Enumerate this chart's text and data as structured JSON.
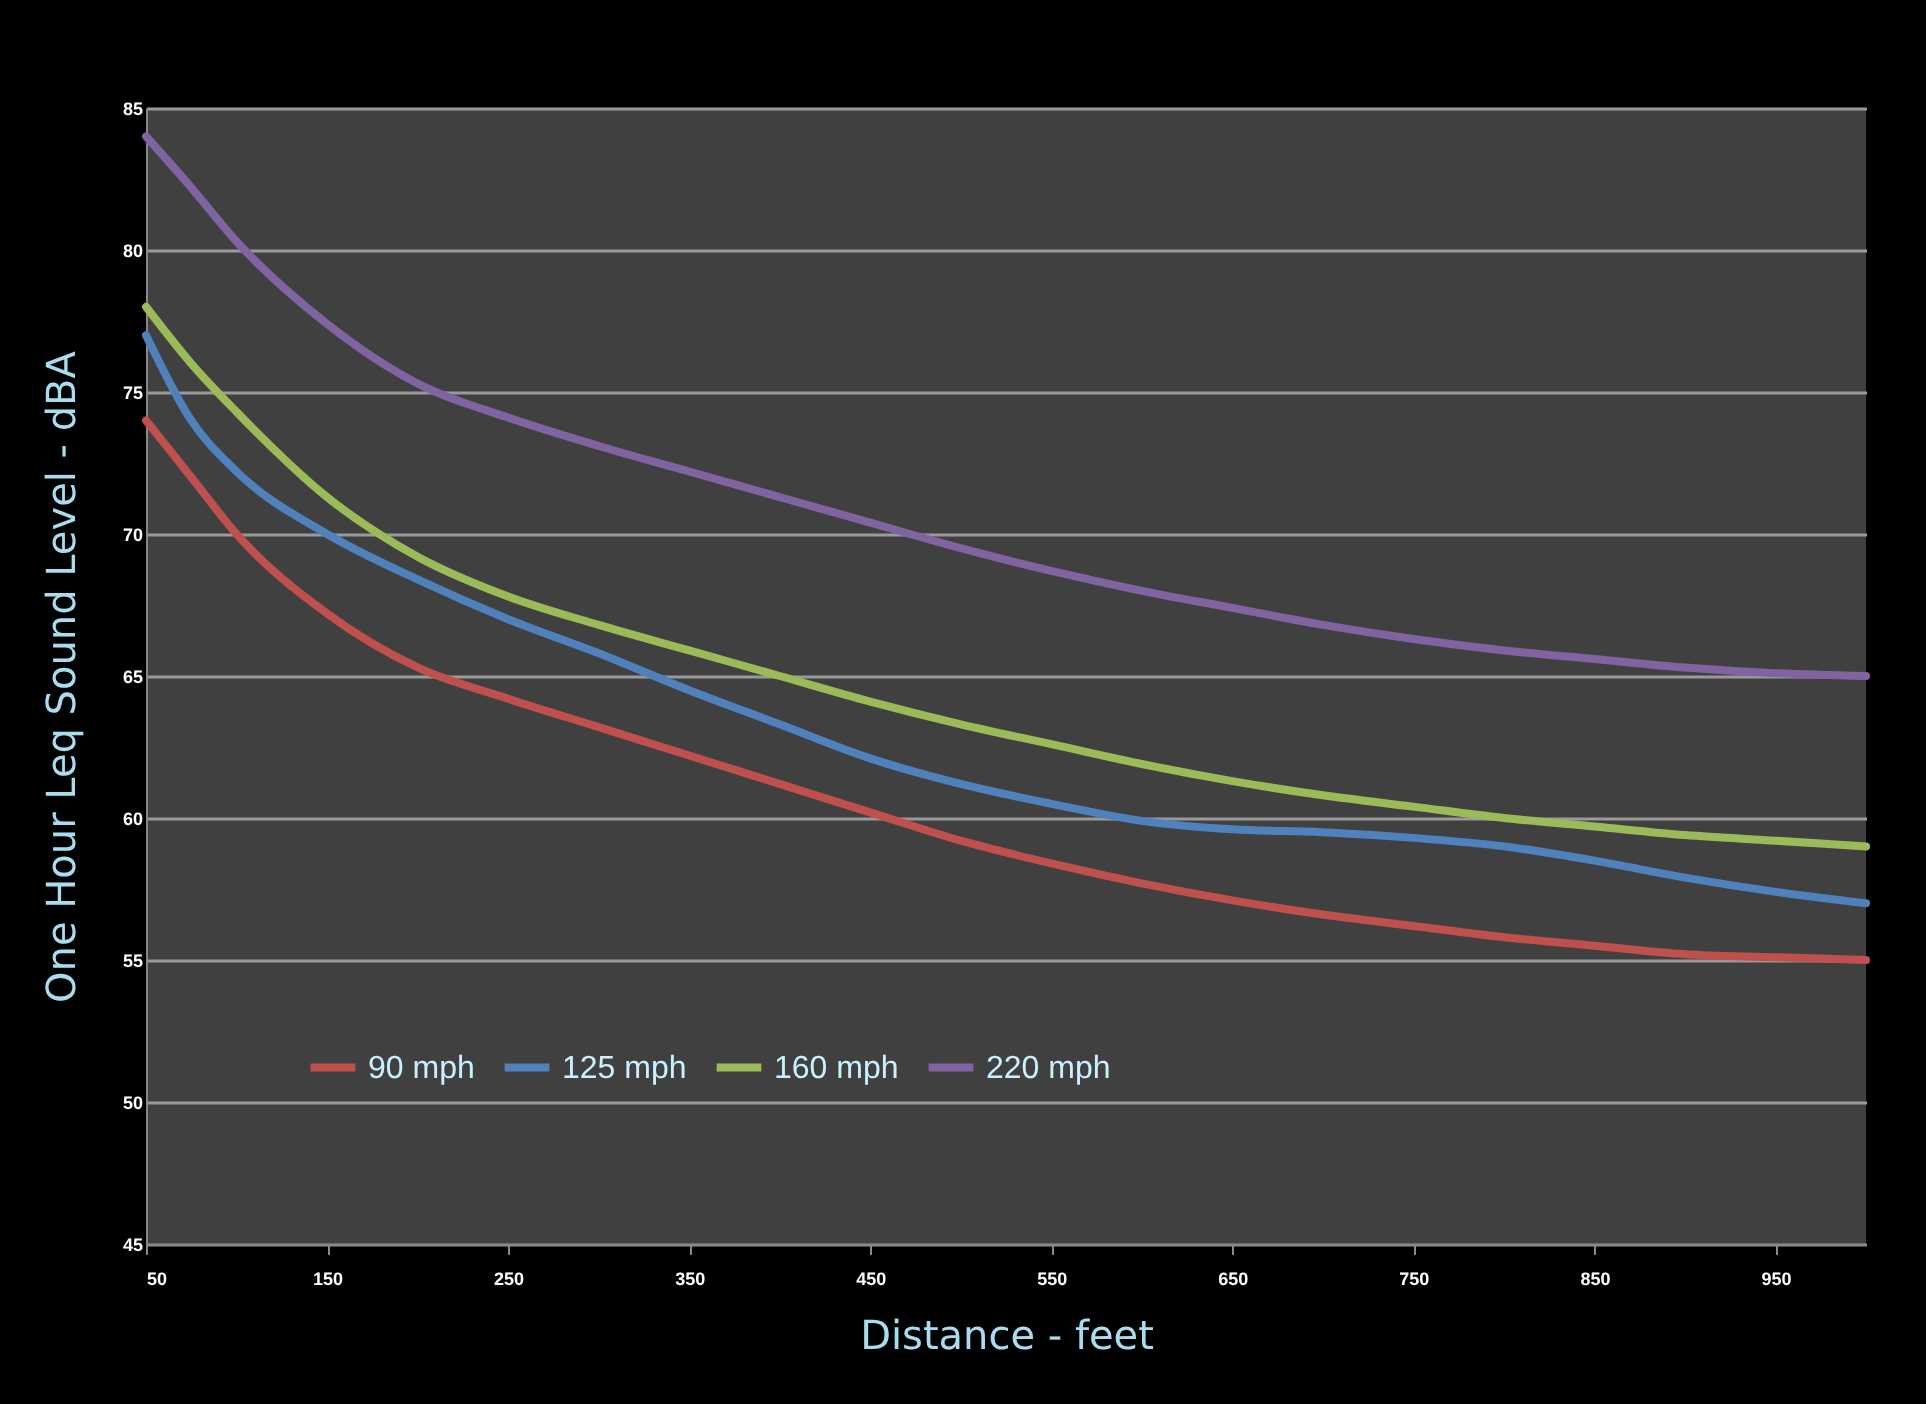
{
  "chart_data": {
    "type": "line",
    "xlabel": "Distance - feet",
    "ylabel": "One Hour Leq Sound Level - dBA",
    "x": [
      50,
      75,
      100,
      150,
      200,
      250,
      300,
      350,
      400,
      450,
      500,
      550,
      600,
      650,
      700,
      750,
      800,
      850,
      900,
      950,
      1000
    ],
    "series": [
      {
        "name": "90 mph",
        "color": "#c0504d",
        "values": [
          74,
          72,
          70,
          67.2,
          65.3,
          64.2,
          63.2,
          62.2,
          61.2,
          60.2,
          59.2,
          58.4,
          57.7,
          57.1,
          56.6,
          56.2,
          55.8,
          55.5,
          55.2,
          55.1,
          55
        ]
      },
      {
        "name": "125 mph",
        "color": "#4f81bd",
        "values": [
          77,
          74,
          72.2,
          70,
          68.4,
          67,
          65.8,
          64.5,
          63.3,
          62.1,
          61.2,
          60.5,
          59.9,
          59.6,
          59.5,
          59.3,
          59,
          58.5,
          57.9,
          57.4,
          57
        ]
      },
      {
        "name": "160 mph",
        "color": "#9bbb59",
        "values": [
          78,
          76,
          74.3,
          71.3,
          69.2,
          67.8,
          66.8,
          65.9,
          65,
          64.1,
          63.3,
          62.6,
          61.9,
          61.3,
          60.8,
          60.4,
          60,
          59.7,
          59.4,
          59.2,
          59
        ]
      },
      {
        "name": "220 mph",
        "color": "#8064a2",
        "values": [
          84,
          82.2,
          80.3,
          77.4,
          75.3,
          74.1,
          73.1,
          72.2,
          71.3,
          70.4,
          69.5,
          68.7,
          68,
          67.4,
          66.8,
          66.3,
          65.9,
          65.6,
          65.3,
          65.1,
          65
        ]
      }
    ],
    "xlim": [
      50,
      1000
    ],
    "xticks": [
      50,
      150,
      250,
      350,
      450,
      550,
      650,
      750,
      850,
      950
    ],
    "ylim": [
      45,
      85
    ],
    "yticks": [
      45,
      50,
      55,
      60,
      65,
      70,
      75,
      80,
      85
    ],
    "grid": "y",
    "legend": "bottom left",
    "marker": "none",
    "line_style": "solid"
  }
}
